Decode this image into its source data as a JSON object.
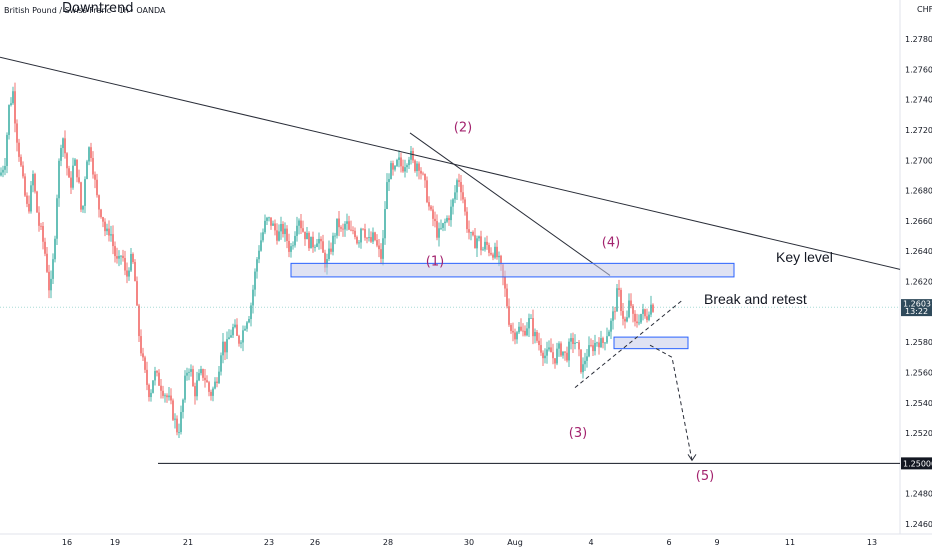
{
  "symbol_header": "British Pound / Swiss Franc · 1h · OANDA",
  "chart_data": {
    "type": "candlestick",
    "title": "Downtrend",
    "currency": "CHF",
    "ylim": [
      1.245,
      1.283
    ],
    "y_ticks": [
      "1.24600",
      "1.24800",
      "1.25000",
      "1.25200",
      "1.25400",
      "1.25600",
      "1.25800",
      "1.26000",
      "1.26200",
      "1.26400",
      "1.26600",
      "1.26800",
      "1.27000",
      "1.27200",
      "1.27400",
      "1.27600",
      "1.27800"
    ],
    "x_ticks": [
      "16",
      "19",
      "21",
      "23",
      "26",
      "28",
      "30",
      "Aug",
      "4",
      "6",
      "9",
      "11",
      "13"
    ],
    "price_path": [
      [
        0,
        1.269
      ],
      [
        5,
        1.27
      ],
      [
        9,
        1.2735
      ],
      [
        13,
        1.2745
      ],
      [
        16,
        1.272
      ],
      [
        20,
        1.27
      ],
      [
        24,
        1.268
      ],
      [
        28,
        1.2665
      ],
      [
        33,
        1.269
      ],
      [
        38,
        1.266
      ],
      [
        42,
        1.265
      ],
      [
        46,
        1.2635
      ],
      [
        50,
        1.261
      ],
      [
        54,
        1.264
      ],
      [
        58,
        1.269
      ],
      [
        62,
        1.272
      ],
      [
        66,
        1.27
      ],
      [
        70,
        1.268
      ],
      [
        74,
        1.27
      ],
      [
        78,
        1.269
      ],
      [
        82,
        1.266
      ],
      [
        86,
        1.27
      ],
      [
        90,
        1.271
      ],
      [
        94,
        1.269
      ],
      [
        98,
        1.267
      ],
      [
        102,
        1.2665
      ],
      [
        106,
        1.265
      ],
      [
        110,
        1.2655
      ],
      [
        114,
        1.264
      ],
      [
        118,
        1.263
      ],
      [
        122,
        1.264
      ],
      [
        126,
        1.262
      ],
      [
        130,
        1.2635
      ],
      [
        134,
        1.263
      ],
      [
        138,
        1.259
      ],
      [
        142,
        1.257
      ],
      [
        146,
        1.2555
      ],
      [
        150,
        1.2545
      ],
      [
        154,
        1.256
      ],
      [
        158,
        1.2555
      ],
      [
        162,
        1.255
      ],
      [
        166,
        1.2545
      ],
      [
        170,
        1.254
      ],
      [
        174,
        1.253
      ],
      [
        178,
        1.252
      ],
      [
        182,
        1.2535
      ],
      [
        186,
        1.256
      ],
      [
        190,
        1.2565
      ],
      [
        194,
        1.2545
      ],
      [
        198,
        1.2555
      ],
      [
        202,
        1.256
      ],
      [
        206,
        1.2555
      ],
      [
        210,
        1.2545
      ],
      [
        214,
        1.255
      ],
      [
        218,
        1.256
      ],
      [
        222,
        1.258
      ],
      [
        226,
        1.2575
      ],
      [
        230,
        1.2585
      ],
      [
        234,
        1.259
      ],
      [
        238,
        1.258
      ],
      [
        242,
        1.2585
      ],
      [
        246,
        1.2595
      ],
      [
        250,
        1.26
      ],
      [
        254,
        1.262
      ],
      [
        258,
        1.264
      ],
      [
        262,
        1.265
      ],
      [
        266,
        1.266
      ],
      [
        270,
        1.266
      ],
      [
        274,
        1.2655
      ],
      [
        278,
        1.265
      ],
      [
        282,
        1.2655
      ],
      [
        286,
        1.265
      ],
      [
        290,
        1.264
      ],
      [
        294,
        1.265
      ],
      [
        298,
        1.2665
      ],
      [
        302,
        1.2655
      ],
      [
        306,
        1.265
      ],
      [
        310,
        1.2645
      ],
      [
        314,
        1.2645
      ],
      [
        318,
        1.265
      ],
      [
        322,
        1.264
      ],
      [
        326,
        1.263
      ],
      [
        330,
        1.264
      ],
      [
        334,
        1.265
      ],
      [
        338,
        1.266
      ],
      [
        342,
        1.265
      ],
      [
        346,
        1.266
      ],
      [
        350,
        1.265
      ],
      [
        354,
        1.2655
      ],
      [
        358,
        1.2645
      ],
      [
        362,
        1.266
      ],
      [
        366,
        1.265
      ],
      [
        370,
        1.2645
      ],
      [
        374,
        1.265
      ],
      [
        378,
        1.264
      ],
      [
        382,
        1.2635
      ],
      [
        386,
        1.268
      ],
      [
        390,
        1.2695
      ],
      [
        394,
        1.269
      ],
      [
        398,
        1.27
      ],
      [
        402,
        1.2695
      ],
      [
        406,
        1.27
      ],
      [
        410,
        1.2705
      ],
      [
        414,
        1.2695
      ],
      [
        418,
        1.27
      ],
      [
        422,
        1.269
      ],
      [
        426,
        1.268
      ],
      [
        430,
        1.2665
      ],
      [
        434,
        1.266
      ],
      [
        438,
        1.265
      ],
      [
        442,
        1.2655
      ],
      [
        446,
        1.266
      ],
      [
        450,
        1.2665
      ],
      [
        454,
        1.2675
      ],
      [
        458,
        1.269
      ],
      [
        462,
        1.268
      ],
      [
        466,
        1.266
      ],
      [
        470,
        1.265
      ],
      [
        474,
        1.2645
      ],
      [
        478,
        1.265
      ],
      [
        482,
        1.264
      ],
      [
        486,
        1.2645
      ],
      [
        490,
        1.264
      ],
      [
        494,
        1.264
      ],
      [
        498,
        1.2635
      ],
      [
        502,
        1.2625
      ],
      [
        506,
        1.261
      ],
      [
        510,
        1.259
      ],
      [
        514,
        1.2585
      ],
      [
        518,
        1.259
      ],
      [
        522,
        1.2585
      ],
      [
        526,
        1.259
      ],
      [
        530,
        1.2595
      ],
      [
        534,
        1.2585
      ],
      [
        538,
        1.258
      ],
      [
        542,
        1.2575
      ],
      [
        546,
        1.257
      ],
      [
        550,
        1.2575
      ],
      [
        554,
        1.2568
      ],
      [
        558,
        1.2575
      ],
      [
        562,
        1.2575
      ],
      [
        566,
        1.257
      ],
      [
        570,
        1.2578
      ],
      [
        574,
        1.2582
      ],
      [
        578,
        1.2575
      ],
      [
        582,
        1.256
      ],
      [
        586,
        1.2572
      ],
      [
        590,
        1.2575
      ],
      [
        594,
        1.2578
      ],
      [
        598,
        1.2582
      ],
      [
        602,
        1.2578
      ],
      [
        606,
        1.2585
      ],
      [
        610,
        1.259
      ],
      [
        614,
        1.26
      ],
      [
        618,
        1.2615
      ],
      [
        622,
        1.26
      ],
      [
        626,
        1.259
      ],
      [
        630,
        1.261
      ],
      [
        634,
        1.259
      ],
      [
        638,
        1.2595
      ],
      [
        642,
        1.26
      ],
      [
        646,
        1.2595
      ],
      [
        650,
        1.2605
      ],
      [
        654,
        1.2603
      ]
    ],
    "current_price": "1.26031",
    "countdown": "13:22",
    "support_price": "1.25000",
    "key_level_zone": [
      1.2625,
      1.263
    ],
    "retest_zone": [
      1.2577,
      1.2582
    ],
    "downtrend_line": [
      [
        0,
        1.2768
      ],
      [
        900,
        1.2628
      ]
    ],
    "wave_line": [
      [
        410,
        1.2718
      ],
      [
        610,
        1.2624
      ]
    ],
    "rising_support": [
      [
        575,
        1.255
      ],
      [
        683,
        1.2608
      ]
    ],
    "projection_path": [
      [
        650,
        1.2578
      ],
      [
        672,
        1.257
      ],
      [
        692,
        1.2502
      ]
    ],
    "wave_labels": [
      {
        "label": "(1)",
        "x": 435,
        "y": 1.26305
      },
      {
        "label": "(2)",
        "x": 463,
        "y": 1.2719
      },
      {
        "label": "(3)",
        "x": 578,
        "y": 1.25175
      },
      {
        "label": "(4)",
        "x": 611,
        "y": 1.2643
      },
      {
        "label": "(5)",
        "x": 705,
        "y": 1.2489
      }
    ],
    "annotations": [
      {
        "text": "Key level",
        "x": 776,
        "y": 1.2633
      },
      {
        "text": "Break and retest",
        "x": 704,
        "y": 1.2605
      }
    ]
  }
}
